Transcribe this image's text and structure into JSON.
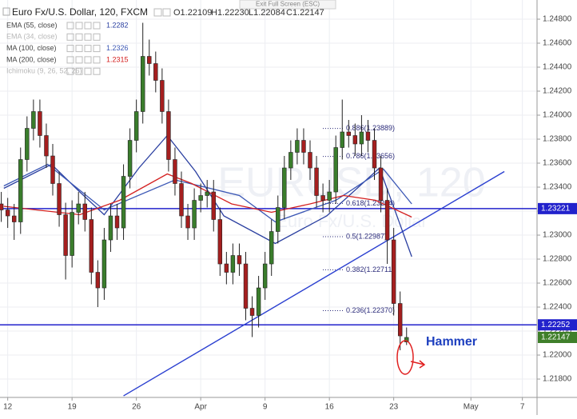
{
  "chart_data": {
    "type": "candlestick",
    "title": "Euro Fx/U.S. Dollar, 120, FXCM",
    "header_ohlc": [
      "O1.22109",
      "H1.22230",
      "L1.22084",
      "C1.22147"
    ],
    "fullscreen_hint": "Exit Full Screen (ESC)",
    "watermark": [
      "EURUSD, 120",
      "Euro Fx/U.S. Dollar"
    ],
    "xlim": [
      -0.6,
      41.14
    ],
    "xticks": [
      {
        "value": 0,
        "label": "12"
      },
      {
        "value": 5,
        "label": "19"
      },
      {
        "value": 10,
        "label": "26"
      },
      {
        "value": 15,
        "label": "Apr"
      },
      {
        "value": 20,
        "label": "9"
      },
      {
        "value": 25,
        "label": "16"
      },
      {
        "value": 30,
        "label": "23"
      },
      {
        "value": 36,
        "label": "May"
      },
      {
        "value": 40,
        "label": "7"
      }
    ],
    "ylim": [
      1.21647,
      1.2496
    ],
    "yticks": [
      {
        "value": 1.248,
        "label": "1.24800"
      },
      {
        "value": 1.246,
        "label": "1.24600"
      },
      {
        "value": 1.244,
        "label": "1.24400"
      },
      {
        "value": 1.242,
        "label": "1.24200"
      },
      {
        "value": 1.24,
        "label": "1.24000"
      },
      {
        "value": 1.238,
        "label": "1.23800"
      },
      {
        "value": 1.236,
        "label": "1.23600"
      },
      {
        "value": 1.234,
        "label": "1.23400"
      },
      {
        "value": 1.232,
        "label": "1.23200"
      },
      {
        "value": 1.23,
        "label": "1.23000"
      },
      {
        "value": 1.228,
        "label": "1.22800"
      },
      {
        "value": 1.226,
        "label": "1.22600"
      },
      {
        "value": 1.224,
        "label": "1.22400"
      },
      {
        "value": 1.222,
        "label": "1.22200"
      },
      {
        "value": 1.22,
        "label": "1.22000"
      },
      {
        "value": 1.218,
        "label": "1.21800"
      }
    ],
    "grid": true,
    "up_color": "#3a7d2c",
    "down_color": "#a51f1f",
    "x": [
      -0.5,
      0,
      0.5,
      1,
      1.5,
      2,
      2.5,
      3,
      3.5,
      4,
      4.5,
      5,
      5.5,
      6,
      6.5,
      7,
      7.5,
      8,
      8.5,
      9,
      9.5,
      10,
      10.5,
      11,
      11.5,
      12,
      12.5,
      13,
      13.5,
      14,
      14.5,
      15,
      15.5,
      16,
      16.5,
      17,
      17.5,
      18,
      18.5,
      19,
      19.5,
      20,
      20.5,
      21,
      21.5,
      22,
      22.5,
      23,
      23.5,
      24,
      24.5,
      25,
      25.5,
      26,
      26.5,
      27,
      27.5,
      28,
      28.5,
      29,
      29.5,
      30,
      30.5,
      31
    ],
    "open": [
      1.2326,
      1.2321,
      1.2316,
      1.2311,
      1.2363,
      1.2389,
      1.2403,
      1.2383,
      1.2366,
      1.2343,
      1.2317,
      1.2283,
      1.2319,
      1.2326,
      1.2313,
      1.2269,
      1.2256,
      1.2296,
      1.2316,
      1.2306,
      1.2349,
      1.2379,
      1.2403,
      1.2449,
      1.2443,
      1.2429,
      1.2403,
      1.2363,
      1.2343,
      1.2316,
      1.2306,
      1.2329,
      1.2333,
      1.2336,
      1.2313,
      1.2276,
      1.2269,
      1.2283,
      1.2276,
      1.2239,
      1.2233,
      1.2256,
      1.2276,
      1.2303,
      1.2323,
      1.2356,
      1.2369,
      1.2379,
      1.2369,
      1.2356,
      1.2333,
      1.2329,
      1.2336,
      1.2373,
      1.2386,
      1.2383,
      1.2376,
      1.2386,
      1.2379,
      1.2356,
      1.2329,
      1.2296,
      1.2243,
      1.22109
    ],
    "high": [
      1.2336,
      1.2331,
      1.2326,
      1.2373,
      1.2399,
      1.2413,
      1.2413,
      1.2393,
      1.2376,
      1.2353,
      1.2327,
      1.2329,
      1.2336,
      1.2336,
      1.2323,
      1.2279,
      1.2306,
      1.2326,
      1.2326,
      1.2359,
      1.2389,
      1.2413,
      1.2477,
      1.2463,
      1.2453,
      1.2439,
      1.2413,
      1.2373,
      1.2353,
      1.2326,
      1.2339,
      1.2343,
      1.2346,
      1.2346,
      1.2323,
      1.2286,
      1.2293,
      1.2293,
      1.2286,
      1.2249,
      1.2266,
      1.2286,
      1.2313,
      1.2333,
      1.2366,
      1.2379,
      1.2389,
      1.2389,
      1.2379,
      1.2366,
      1.2343,
      1.2346,
      1.2383,
      1.2413,
      1.2396,
      1.2393,
      1.24,
      1.2396,
      1.2389,
      1.2366,
      1.2339,
      1.2306,
      1.2253,
      1.2223
    ],
    "low": [
      1.2311,
      1.2306,
      1.2296,
      1.2301,
      1.2353,
      1.2379,
      1.2373,
      1.2356,
      1.2333,
      1.2307,
      1.2263,
      1.2273,
      1.2309,
      1.2303,
      1.2259,
      1.224,
      1.2246,
      1.2286,
      1.2296,
      1.2296,
      1.2339,
      1.2369,
      1.2393,
      1.2433,
      1.2419,
      1.2393,
      1.2353,
      1.2333,
      1.2306,
      1.2296,
      1.2296,
      1.2319,
      1.2323,
      1.2303,
      1.2266,
      1.2259,
      1.2259,
      1.2266,
      1.2229,
      1.2215,
      1.2223,
      1.2246,
      1.2266,
      1.2293,
      1.2313,
      1.2346,
      1.2359,
      1.2359,
      1.2346,
      1.2323,
      1.2319,
      1.2319,
      1.2326,
      1.2363,
      1.2373,
      1.2366,
      1.2366,
      1.2369,
      1.2346,
      1.2319,
      1.2276,
      1.2233,
      1.2204,
      1.22084
    ],
    "close": [
      1.2321,
      1.2316,
      1.2311,
      1.2363,
      1.2389,
      1.2403,
      1.2383,
      1.2366,
      1.2343,
      1.2317,
      1.2283,
      1.2319,
      1.2326,
      1.2313,
      1.2269,
      1.2256,
      1.2296,
      1.2316,
      1.2306,
      1.2349,
      1.2379,
      1.2403,
      1.2449,
      1.2443,
      1.2429,
      1.2403,
      1.2363,
      1.2343,
      1.2316,
      1.2306,
      1.2329,
      1.2333,
      1.2336,
      1.2313,
      1.2276,
      1.2269,
      1.2283,
      1.2276,
      1.2239,
      1.2233,
      1.2256,
      1.2276,
      1.2303,
      1.2323,
      1.2356,
      1.2369,
      1.2379,
      1.2369,
      1.2356,
      1.2333,
      1.2329,
      1.2336,
      1.2373,
      1.2386,
      1.2383,
      1.2376,
      1.2386,
      1.2379,
      1.2356,
      1.2329,
      1.2296,
      1.2243,
      1.2216,
      1.22147
    ],
    "last_price": 1.22147,
    "last_price_color": "#3f7f2a",
    "indicators": [
      {
        "name": "EMA (55, close)",
        "last": 1.2282,
        "color": "#2a3fa0",
        "x": [
          -0.3,
          3.4,
          5.6,
          7.5,
          10.2,
          12.4,
          14.6,
          16.8,
          20.8,
          24.8,
          28.9,
          31.4
        ],
        "values": [
          1.2339,
          1.2359,
          1.2336,
          1.2317,
          1.2356,
          1.2383,
          1.2353,
          1.2316,
          1.2293,
          1.2316,
          1.2356,
          1.2282
        ]
      },
      {
        "name": "EMA (34, close)",
        "color": "#b8b8b8"
      },
      {
        "name": "MA (100, close)",
        "last": 1.2326,
        "color": "#3b57b5",
        "x": [
          -0.3,
          3.1,
          7.5,
          13.0,
          18.0,
          20.8,
          25.5,
          29.2,
          31.4
        ],
        "values": [
          1.2341,
          1.2359,
          1.2321,
          1.2346,
          1.2333,
          1.2311,
          1.2329,
          1.2355,
          1.2326
        ]
      },
      {
        "name": "MA (200, close)",
        "last": 1.2315,
        "color": "#d42020",
        "x": [
          -0.3,
          5.6,
          8.7,
          12.4,
          14.3,
          17.4,
          20.5,
          23.5,
          26.1,
          28.6,
          31.4
        ],
        "values": [
          1.2324,
          1.2317,
          1.2329,
          1.2351,
          1.2343,
          1.2326,
          1.2319,
          1.2326,
          1.2333,
          1.2329,
          1.2315
        ]
      },
      {
        "name": "Ichimoku (9, 26, 52, 26)",
        "color": "#b8b8b8"
      }
    ],
    "hlines": {
      "color": "#2222cc",
      "values": [
        1.23221,
        1.22252
      ]
    },
    "trendline": {
      "color": "#2a3fd0",
      "x": [
        9.0,
        38.6
      ],
      "values": [
        1.2166,
        1.2353
      ]
    },
    "fib_levels": {
      "color": "#2b2b7a",
      "levels": [
        {
          "value": 1.23889,
          "label": "0.886(1.23889)"
        },
        {
          "value": 1.23656,
          "label": "0.786(1.23656)"
        },
        {
          "value": 1.23264,
          "label": "0.618(1.23264)"
        },
        {
          "value": 1.22987,
          "label": "0.5(1.22987)"
        },
        {
          "value": 1.22711,
          "label": "0.382(1.22711)"
        },
        {
          "value": 1.2237,
          "label": "0.236(1.22370)"
        }
      ]
    },
    "annotation": "Hammer"
  }
}
